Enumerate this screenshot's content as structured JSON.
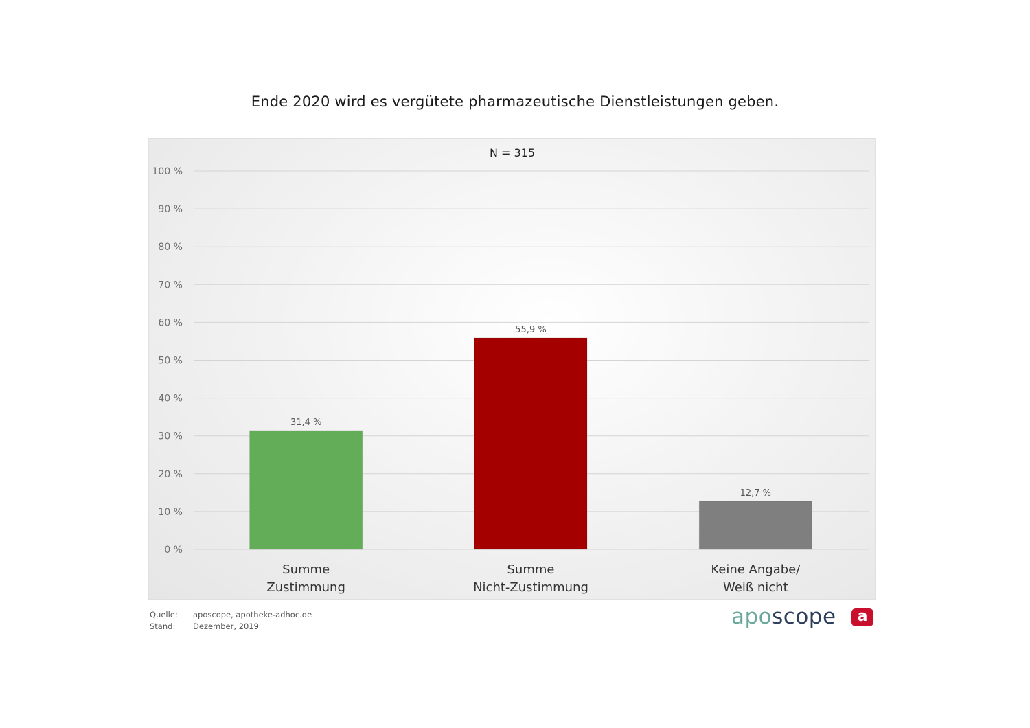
{
  "title": "Ende 2020 wird es vergütete pharmazeutische Dienstleistungen geben.",
  "chart_data": {
    "type": "bar",
    "subtitle": "N = 315",
    "categories": [
      [
        "Summe",
        "Zustimmung"
      ],
      [
        "Summe",
        "Nicht-Zustimmung"
      ],
      [
        "Keine Angabe/",
        "Weiß nicht"
      ]
    ],
    "values": [
      31.4,
      55.9,
      12.7
    ],
    "value_labels": [
      "31,4 %",
      "55,9 %",
      "12,7 %"
    ],
    "colors": [
      "#63ad58",
      "#a50000",
      "#7f7f7f"
    ],
    "ylim": [
      0,
      100
    ],
    "yticks": [
      0,
      10,
      20,
      30,
      40,
      50,
      60,
      70,
      80,
      90,
      100
    ],
    "ytick_labels": [
      "0 %",
      "10 %",
      "20 %",
      "30 %",
      "40 %",
      "50 %",
      "60 %",
      "70 %",
      "80 %",
      "90 %",
      "100 %"
    ],
    "grid": true,
    "legend": "none"
  },
  "footer": {
    "source_label": "Quelle:",
    "source_value": "aposcope, apotheke-adhoc.de",
    "date_label": "Stand:",
    "date_value": "Dezember,  2019"
  },
  "brand": {
    "part1": "apo",
    "part2": "scope",
    "logo_letter": "a"
  }
}
